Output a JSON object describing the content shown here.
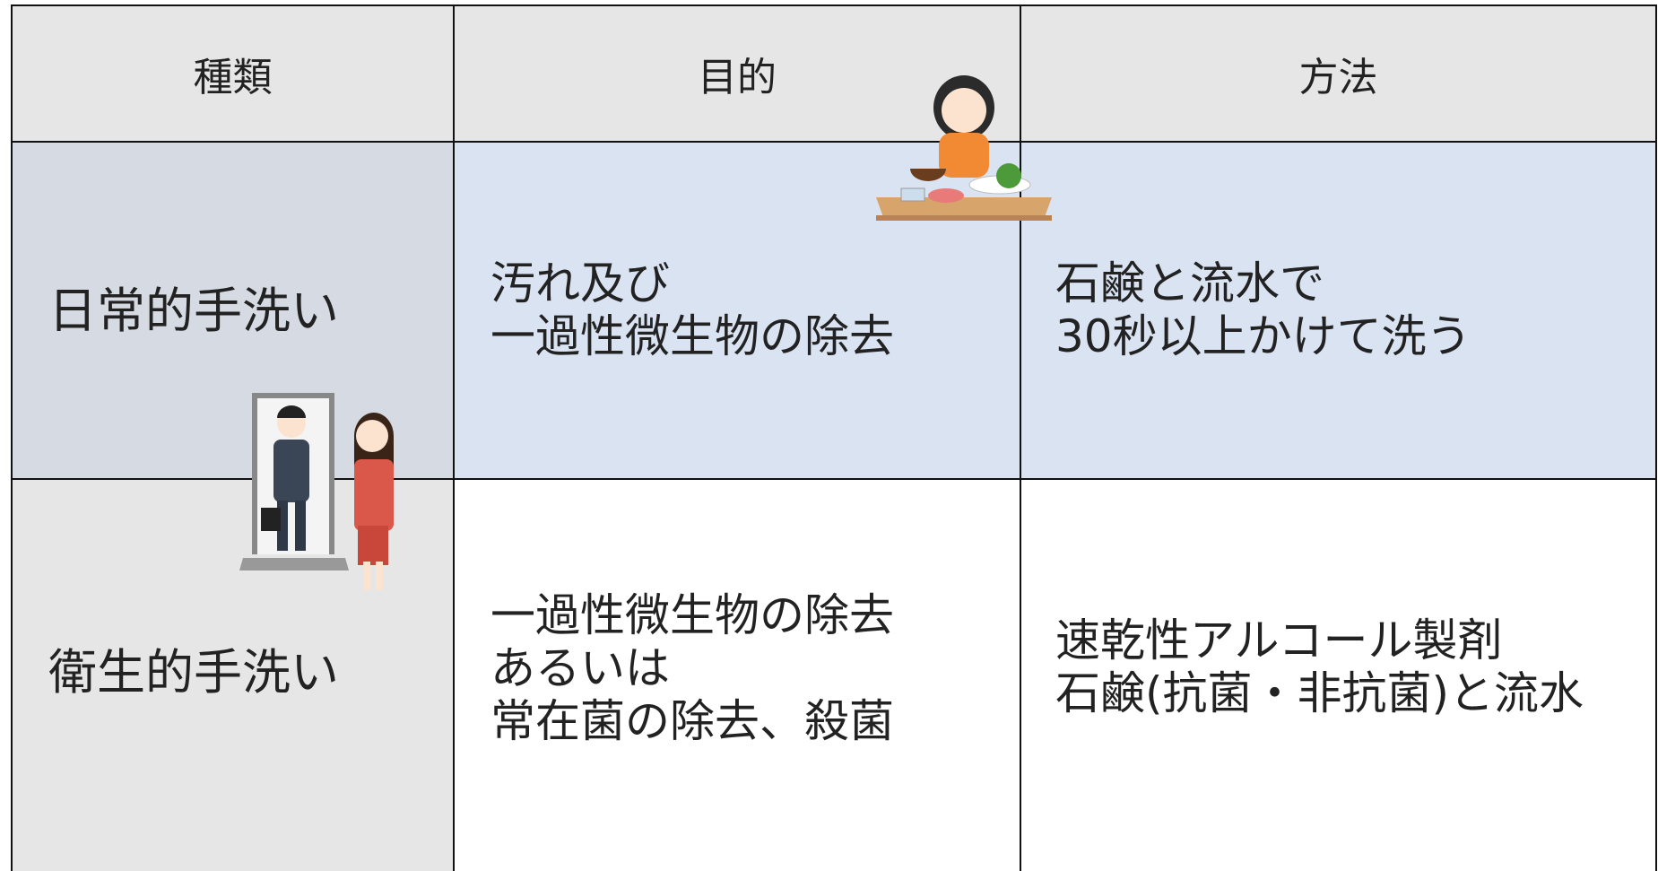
{
  "table": {
    "headers": [
      "種類",
      "目的",
      "方法"
    ],
    "rows": [
      {
        "type": "日常的手洗い",
        "purpose": [
          "汚れ及び",
          "一過性微生物の除去"
        ],
        "method": [
          "石鹸と流水で",
          "30秒以上かけて洗う"
        ]
      },
      {
        "type": "衛生的手洗い",
        "purpose": [
          "一過性微生物の除去",
          "あるいは",
          "常在菌の除去、殺菌"
        ],
        "method": [
          "速乾性アルコール製剤",
          "石鹸(抗菌・非抗菌)と流水"
        ]
      }
    ]
  }
}
